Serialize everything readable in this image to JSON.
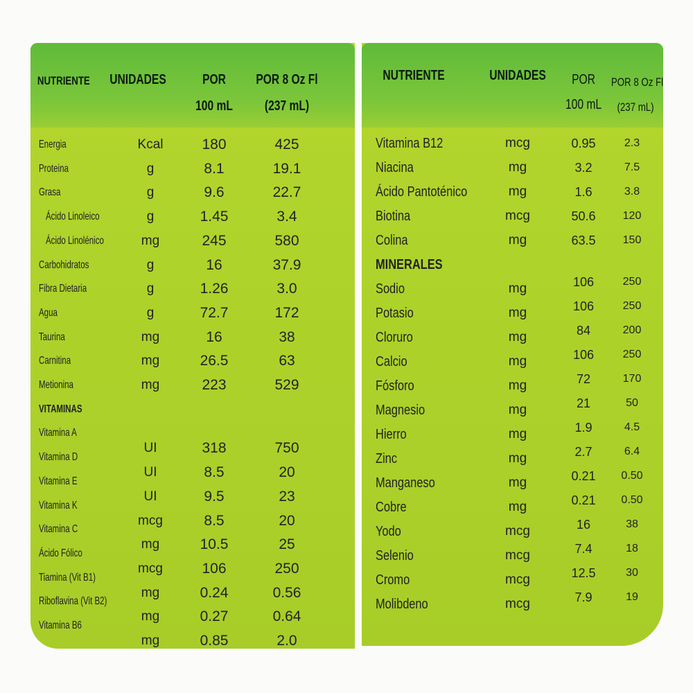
{
  "left": {
    "headers": {
      "nutrient": "NUTRIENTE",
      "units": "UNIDADES",
      "per100_l1": "POR",
      "per100_l2": "100 mL",
      "per8_l1": "POR 8 Oz Fl",
      "per8_l2": "(237 mL)"
    },
    "rows": [
      {
        "name": "Energia",
        "unit": "Kcal",
        "v100": "180",
        "v8": "425"
      },
      {
        "name": "Proteina",
        "unit": "g",
        "v100": "8.1",
        "v8": "19.1"
      },
      {
        "name": "Grasa",
        "unit": "g",
        "v100": "9.6",
        "v8": "22.7"
      },
      {
        "name": "Ácido Linoleico",
        "unit": "g",
        "v100": "1.45",
        "v8": "3.4",
        "sub": true
      },
      {
        "name": "Ácido Linolénico",
        "unit": "mg",
        "v100": "245",
        "v8": "580",
        "sub": true
      },
      {
        "name": "Carbohidratos",
        "unit": "g",
        "v100": "16",
        "v8": "37.9"
      },
      {
        "name": "Fibra Dietaria",
        "unit": "g",
        "v100": "1.26",
        "v8": "3.0"
      },
      {
        "name": "Agua",
        "unit": "g",
        "v100": "72.7",
        "v8": "172"
      },
      {
        "name": "Taurina",
        "unit": "mg",
        "v100": "16",
        "v8": "38"
      },
      {
        "name": "Carnitina",
        "unit": "mg",
        "v100": "26.5",
        "v8": "63"
      },
      {
        "name": "Metionina",
        "unit": "mg",
        "v100": "223",
        "v8": "529"
      },
      {
        "name": "VITAMINAS",
        "section": true
      },
      {
        "name": "Vitamina A",
        "unit": "UI",
        "v100": "318",
        "v8": "750"
      },
      {
        "name": "Vitamina D",
        "unit": "UI",
        "v100": "8.5",
        "v8": "20"
      },
      {
        "name": "Vitamina E",
        "unit": "UI",
        "v100": "9.5",
        "v8": "23"
      },
      {
        "name": "Vitamina K",
        "unit": "mcg",
        "v100": "8.5",
        "v8": "20"
      },
      {
        "name": "Vitamina C",
        "unit": "mg",
        "v100": "10.5",
        "v8": "25"
      },
      {
        "name": "Ácido Fólico",
        "unit": "mcg",
        "v100": "106",
        "v8": "250"
      },
      {
        "name": "Tiamina  (Vit B1)",
        "unit": "mg",
        "v100": "0.24",
        "v8": "0.56"
      },
      {
        "name": "Riboflavina  (Vit B2)",
        "unit": "mg",
        "v100": "0.27",
        "v8": "0.64"
      },
      {
        "name": "Vitamina B6",
        "unit": "mg",
        "v100": "0.85",
        "v8": "2.0"
      }
    ]
  },
  "right": {
    "headers": {
      "nutrient": "NUTRIENTE",
      "units": "UNIDADES",
      "per100_l1": "POR",
      "per100_l2": "100 mL",
      "per8_l1": "POR 8 Oz Fl",
      "per8_l2": "(237 mL)"
    },
    "rows": [
      {
        "name": "Vitamina B12",
        "unit": "mcg",
        "v100": "0.95",
        "v8": "2.3"
      },
      {
        "name": "Niacina",
        "unit": "mg",
        "v100": "3.2",
        "v8": "7.5"
      },
      {
        "name": "Ácido Pantoténico",
        "unit": "mg",
        "v100": "1.6",
        "v8": "3.8"
      },
      {
        "name": "Biotina",
        "unit": "mcg",
        "v100": "50.6",
        "v8": "120"
      },
      {
        "name": "Colina",
        "unit": "mg",
        "v100": "63.5",
        "v8": "150"
      },
      {
        "name": "MINERALES",
        "section": true
      },
      {
        "name": "Sodio",
        "unit": "mg",
        "v100": "106",
        "v8": "250"
      },
      {
        "name": "Potasio",
        "unit": "mg",
        "v100": "106",
        "v8": "250"
      },
      {
        "name": "Cloruro",
        "unit": "mg",
        "v100": "84",
        "v8": "200"
      },
      {
        "name": "Calcio",
        "unit": "mg",
        "v100": "106",
        "v8": "250"
      },
      {
        "name": "Fósforo",
        "unit": "mg",
        "v100": "72",
        "v8": "170"
      },
      {
        "name": "Magnesio",
        "unit": "mg",
        "v100": "21",
        "v8": "50"
      },
      {
        "name": "Hierro",
        "unit": "mg",
        "v100": "1.9",
        "v8": "4.5"
      },
      {
        "name": "Zinc",
        "unit": "mg",
        "v100": "2.7",
        "v8": "6.4"
      },
      {
        "name": "Manganeso",
        "unit": "mg",
        "v100": "0.21",
        "v8": "0.50"
      },
      {
        "name": "Cobre",
        "unit": "mg",
        "v100": "0.21",
        "v8": "0.50"
      },
      {
        "name": "Yodo",
        "unit": "mcg",
        "v100": "16",
        "v8": "38"
      },
      {
        "name": "Selenio",
        "unit": "mcg",
        "v100": "7.4",
        "v8": "18"
      },
      {
        "name": "Cromo",
        "unit": "mcg",
        "v100": "12.5",
        "v8": "30"
      },
      {
        "name": "Molibdeno",
        "unit": "mcg",
        "v100": "7.9",
        "v8": "19"
      }
    ]
  },
  "colors": {
    "label_green": "#acd22a",
    "header_green": "#5fbb3a",
    "text": "#222222"
  }
}
